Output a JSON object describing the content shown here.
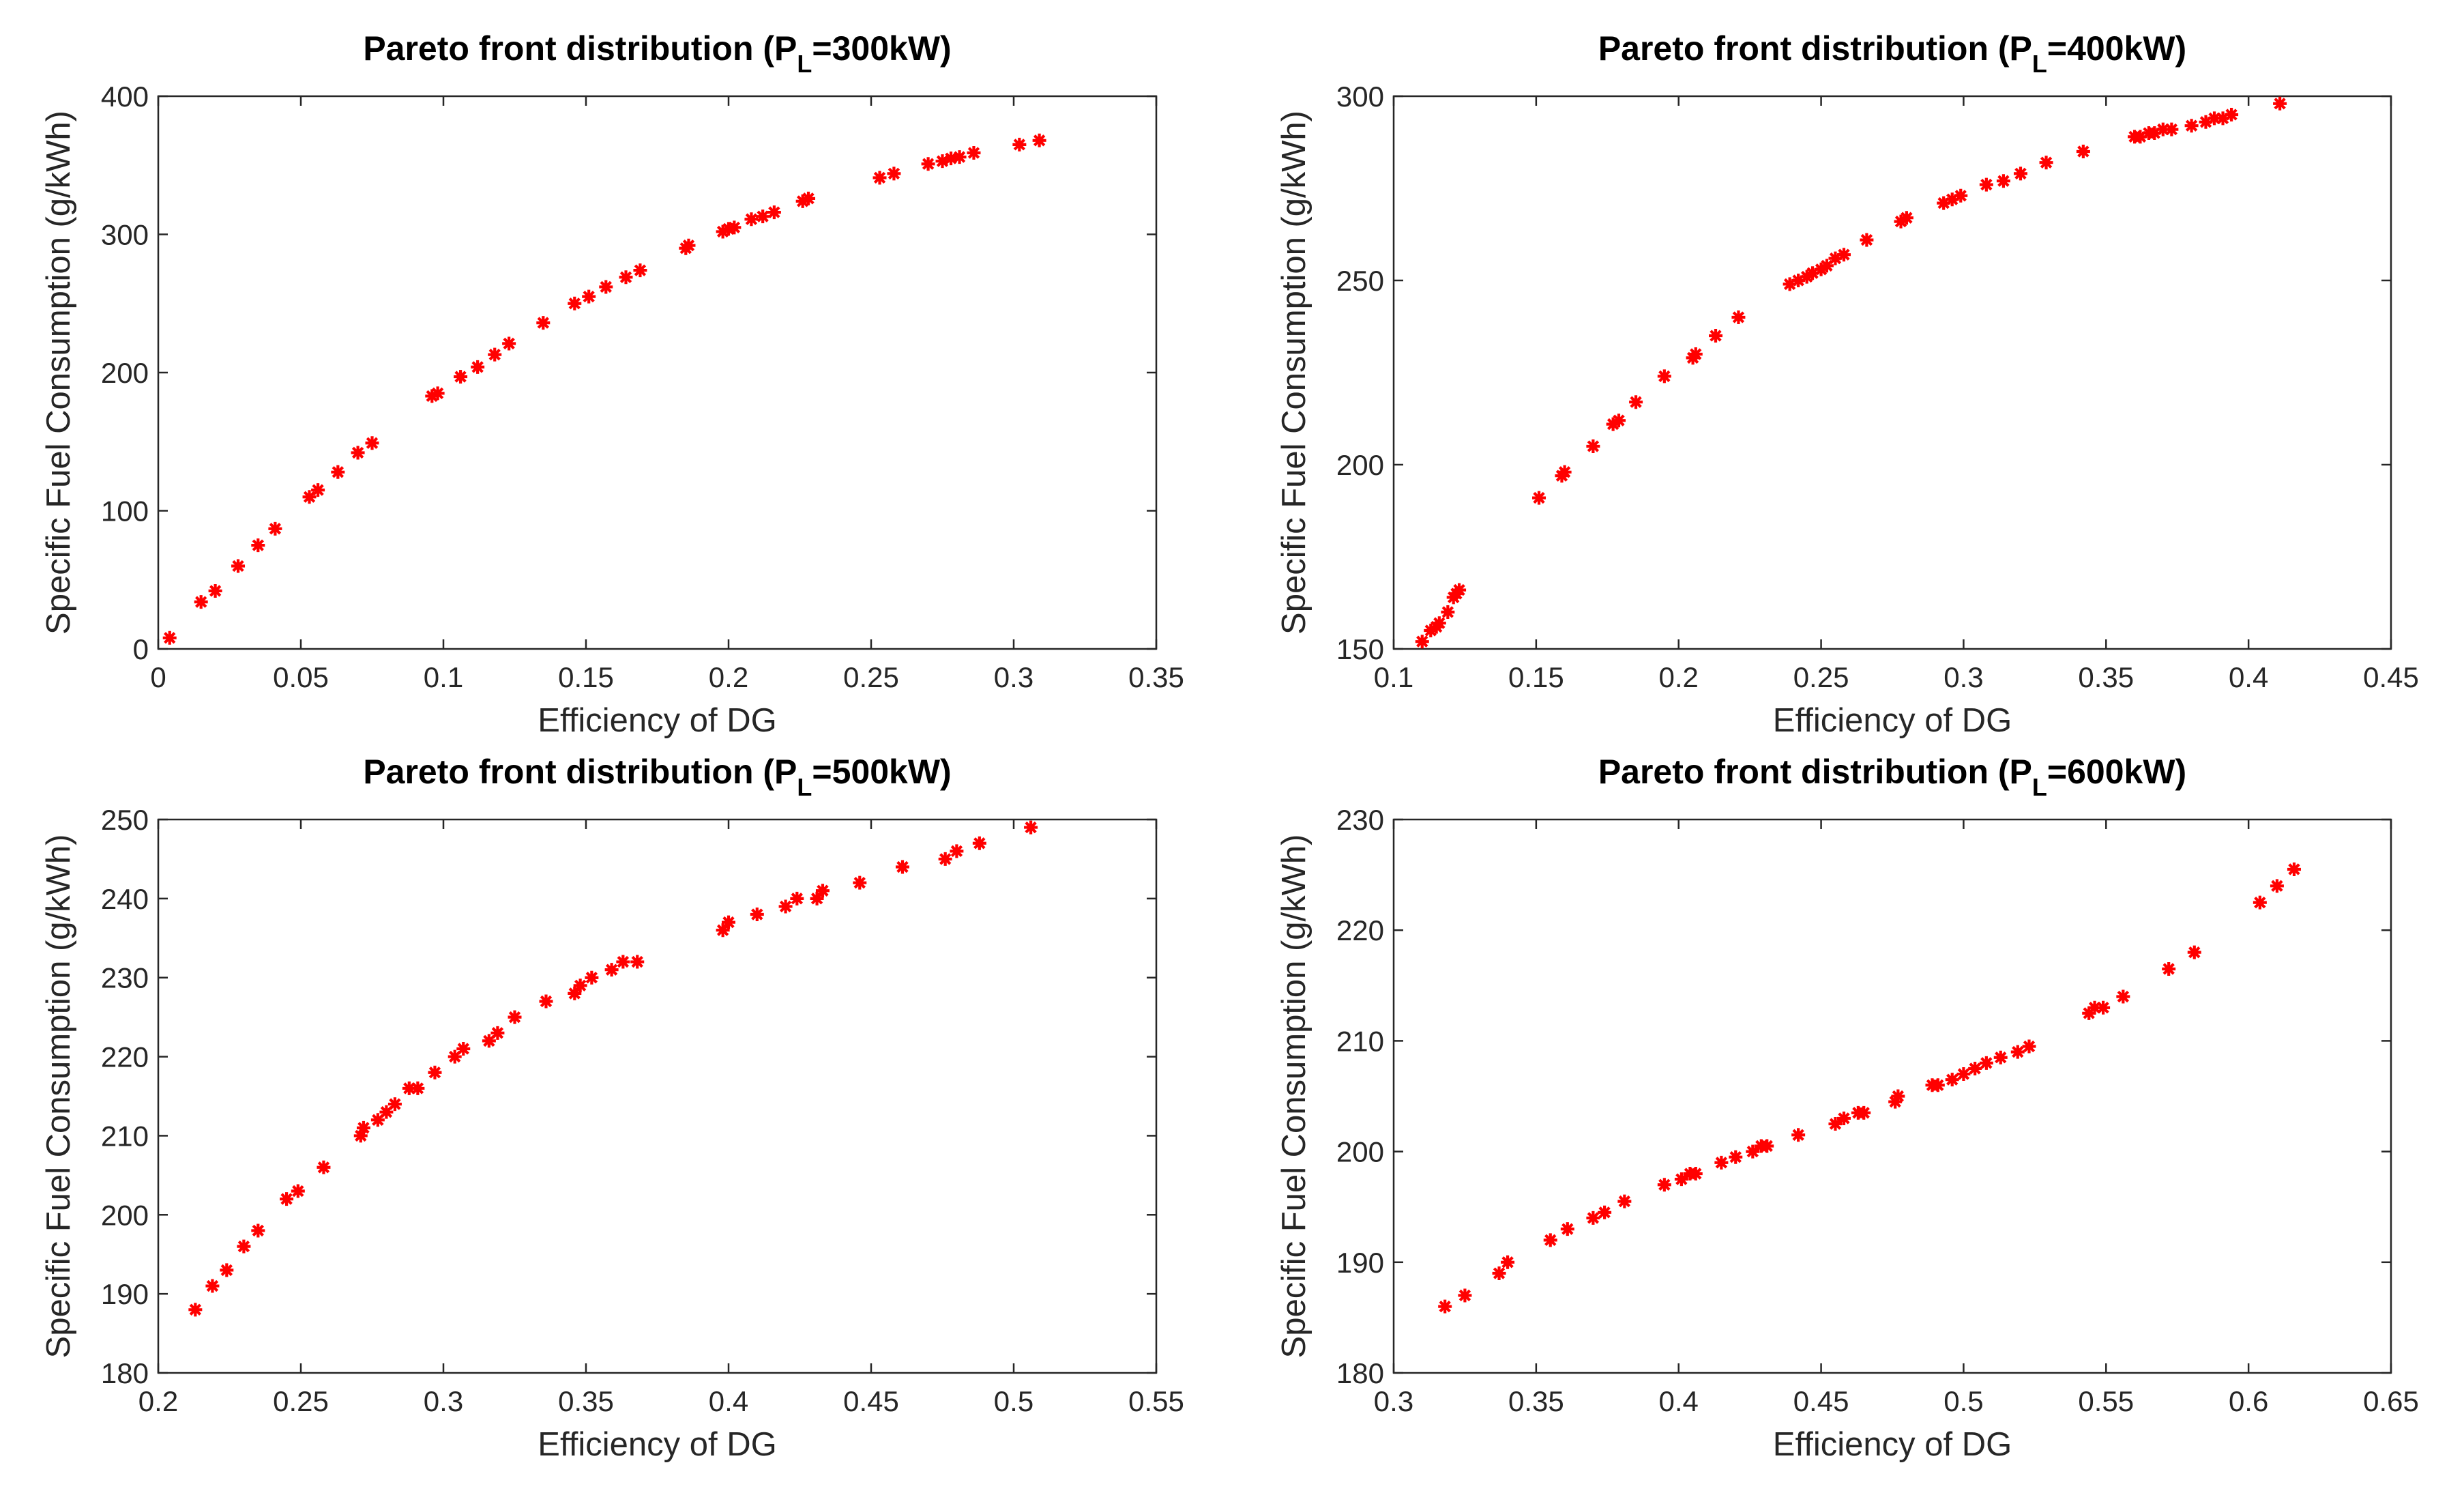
{
  "marker_color": "#ff0000",
  "chart_data": [
    {
      "type": "scatter",
      "title": {
        "prefix": "Pareto front distribution (P",
        "sub": "L",
        "suffix": "=300kW)"
      },
      "xlabel": "Efficiency of DG",
      "ylabel": "Specific Fuel Consumption (g/kWh)",
      "xlim": [
        0,
        0.35
      ],
      "ylim": [
        0,
        400
      ],
      "xticks": [
        0,
        0.05,
        0.1,
        0.15,
        0.2,
        0.25,
        0.3,
        0.35
      ],
      "xtick_labels": [
        "0",
        "0.05",
        "0.1",
        "0.15",
        "0.2",
        "0.25",
        "0.3",
        "0.35"
      ],
      "yticks": [
        0,
        100,
        200,
        300,
        400
      ],
      "ytick_labels": [
        "0",
        "100",
        "200",
        "300",
        "400"
      ],
      "series": [
        {
          "name": "Pareto front",
          "marker": "asterisk",
          "color": "#ff0000",
          "x": [
            0.004,
            0.015,
            0.02,
            0.028,
            0.035,
            0.041,
            0.053,
            0.056,
            0.063,
            0.07,
            0.075,
            0.096,
            0.098,
            0.106,
            0.112,
            0.118,
            0.123,
            0.135,
            0.146,
            0.151,
            0.157,
            0.164,
            0.169,
            0.185,
            0.186,
            0.198,
            0.2,
            0.202,
            0.208,
            0.212,
            0.216,
            0.226,
            0.228,
            0.253,
            0.258,
            0.27,
            0.275,
            0.278,
            0.281,
            0.286,
            0.302,
            0.309
          ],
          "y": [
            8,
            34,
            42,
            60,
            75,
            87,
            110,
            115,
            128,
            142,
            149,
            183,
            185,
            197,
            204,
            213,
            221,
            236,
            250,
            255,
            262,
            269,
            274,
            290,
            292,
            302,
            304,
            305,
            311,
            313,
            316,
            324,
            326,
            341,
            344,
            351,
            353,
            355,
            356,
            359,
            365,
            368
          ]
        }
      ]
    },
    {
      "type": "scatter",
      "title": {
        "prefix": "Pareto front distribution (P",
        "sub": "L",
        "suffix": "=400kW)"
      },
      "xlabel": "Efficiency of DG",
      "ylabel": "Specific Fuel Consumption (g/kWh)",
      "xlim": [
        0.1,
        0.45
      ],
      "ylim": [
        150,
        300
      ],
      "xticks": [
        0.1,
        0.15,
        0.2,
        0.25,
        0.3,
        0.35,
        0.4,
        0.45
      ],
      "xtick_labels": [
        "0.1",
        "0.15",
        "0.2",
        "0.25",
        "0.3",
        "0.35",
        "0.4",
        "0.45"
      ],
      "yticks": [
        150,
        200,
        250,
        300
      ],
      "ytick_labels": [
        "150",
        "200",
        "250",
        "300"
      ],
      "series": [
        {
          "name": "Pareto front",
          "marker": "asterisk",
          "color": "#ff0000",
          "x": [
            0.11,
            0.113,
            0.115,
            0.116,
            0.119,
            0.121,
            0.122,
            0.123,
            0.151,
            0.159,
            0.16,
            0.17,
            0.177,
            0.179,
            0.185,
            0.195,
            0.205,
            0.206,
            0.213,
            0.221,
            0.239,
            0.242,
            0.245,
            0.247,
            0.25,
            0.252,
            0.255,
            0.258,
            0.266,
            0.278,
            0.28,
            0.293,
            0.296,
            0.299,
            0.308,
            0.314,
            0.32,
            0.329,
            0.342,
            0.36,
            0.362,
            0.365,
            0.367,
            0.37,
            0.373,
            0.38,
            0.385,
            0.388,
            0.391,
            0.394,
            0.411
          ],
          "y": [
            152,
            155,
            156,
            157,
            160,
            164,
            165,
            166,
            191,
            197,
            198,
            205,
            211,
            212,
            217,
            224,
            229,
            230,
            235,
            240,
            249,
            250,
            251,
            252,
            253,
            254,
            256,
            257,
            261,
            266,
            267,
            271,
            272,
            273,
            276,
            277,
            279,
            282,
            285,
            289,
            289,
            290,
            290,
            291,
            291,
            292,
            293,
            294,
            294,
            295,
            298
          ]
        }
      ]
    },
    {
      "type": "scatter",
      "title": {
        "prefix": "Pareto front distribution (P",
        "sub": "L",
        "suffix": "=500kW)"
      },
      "xlabel": "Efficiency of DG",
      "ylabel": "Specific Fuel Consumption (g/kWh)",
      "xlim": [
        0.2,
        0.55
      ],
      "ylim": [
        180,
        250
      ],
      "xticks": [
        0.2,
        0.25,
        0.3,
        0.35,
        0.4,
        0.45,
        0.5,
        0.55
      ],
      "xtick_labels": [
        "0.2",
        "0.25",
        "0.3",
        "0.35",
        "0.4",
        "0.45",
        "0.5",
        "0.55"
      ],
      "yticks": [
        180,
        190,
        200,
        210,
        220,
        230,
        240,
        250
      ],
      "ytick_labels": [
        "180",
        "190",
        "200",
        "210",
        "220",
        "230",
        "240",
        "250"
      ],
      "series": [
        {
          "name": "Pareto front",
          "marker": "asterisk",
          "color": "#ff0000",
          "x": [
            0.213,
            0.219,
            0.224,
            0.23,
            0.235,
            0.245,
            0.249,
            0.258,
            0.271,
            0.272,
            0.277,
            0.28,
            0.283,
            0.288,
            0.291,
            0.297,
            0.304,
            0.307,
            0.316,
            0.319,
            0.325,
            0.336,
            0.346,
            0.348,
            0.352,
            0.359,
            0.363,
            0.368,
            0.398,
            0.4,
            0.41,
            0.42,
            0.424,
            0.431,
            0.433,
            0.446,
            0.461,
            0.476,
            0.48,
            0.488,
            0.506
          ],
          "y": [
            188,
            191,
            193,
            196,
            198,
            202,
            203,
            206,
            210,
            211,
            212,
            213,
            214,
            216,
            216,
            218,
            220,
            221,
            222,
            223,
            225,
            227,
            228,
            229,
            230,
            231,
            232,
            232,
            236,
            237,
            238,
            239,
            240,
            240,
            241,
            242,
            244,
            245,
            246,
            247,
            249
          ]
        }
      ]
    },
    {
      "type": "scatter",
      "title": {
        "prefix": "Pareto front distribution (P",
        "sub": "L",
        "suffix": "=600kW)"
      },
      "xlabel": "Efficiency of DG",
      "ylabel": "Specific Fuel Consumption (g/kWh)",
      "xlim": [
        0.3,
        0.65
      ],
      "ylim": [
        180,
        230
      ],
      "xticks": [
        0.3,
        0.35,
        0.4,
        0.45,
        0.5,
        0.55,
        0.6,
        0.65
      ],
      "xtick_labels": [
        "0.3",
        "0.35",
        "0.4",
        "0.45",
        "0.5",
        "0.55",
        "0.6",
        "0.65"
      ],
      "yticks": [
        180,
        190,
        200,
        210,
        220,
        230
      ],
      "ytick_labels": [
        "180",
        "190",
        "200",
        "210",
        "220",
        "230"
      ],
      "series": [
        {
          "name": "Pareto front",
          "marker": "asterisk",
          "color": "#ff0000",
          "x": [
            0.318,
            0.325,
            0.337,
            0.34,
            0.355,
            0.361,
            0.37,
            0.374,
            0.381,
            0.395,
            0.401,
            0.404,
            0.406,
            0.415,
            0.42,
            0.426,
            0.429,
            0.431,
            0.442,
            0.455,
            0.458,
            0.463,
            0.465,
            0.476,
            0.477,
            0.489,
            0.491,
            0.496,
            0.5,
            0.504,
            0.508,
            0.513,
            0.519,
            0.523,
            0.544,
            0.546,
            0.549,
            0.556,
            0.572,
            0.581,
            0.604,
            0.61,
            0.616
          ],
          "y": [
            186,
            187,
            189,
            190,
            192,
            193,
            194,
            194.5,
            195.5,
            197,
            197.5,
            198,
            198,
            199,
            199.5,
            200,
            200.5,
            200.5,
            201.5,
            202.5,
            203,
            203.5,
            203.5,
            204.5,
            205,
            206,
            206,
            206.5,
            207,
            207.5,
            208,
            208.5,
            209,
            209.5,
            212.5,
            213,
            213,
            214,
            216.5,
            218,
            222.5,
            224,
            225.5
          ]
        }
      ]
    }
  ]
}
